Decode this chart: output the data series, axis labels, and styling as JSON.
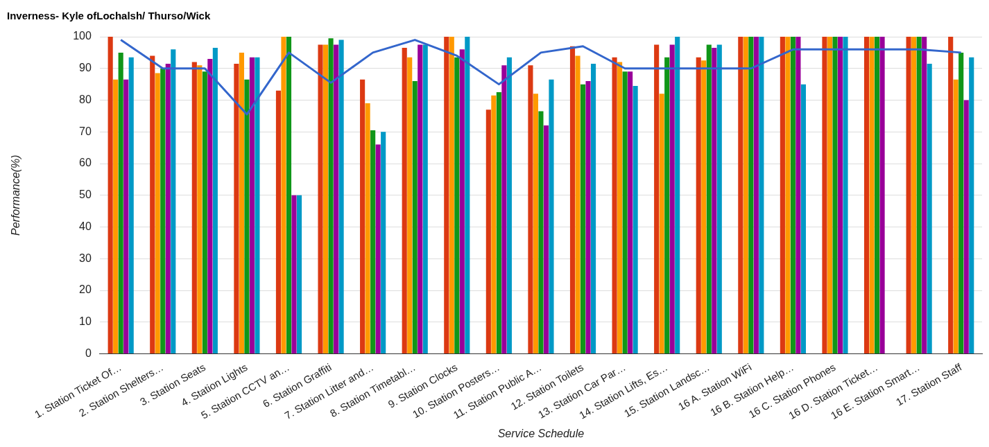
{
  "chart_data": {
    "type": "bar",
    "title": "Inverness- Kyle ofLochalsh/ Thurso/Wick",
    "xlabel": "Service Schedule",
    "ylabel": "Performance(%)",
    "categories": [
      "1. Station Ticket Of…",
      "2. Station Shelters…",
      "3. Station Seats",
      "4. Station Lights",
      "5. Station CCTV an…",
      "6. Station Graffiti",
      "7. Station Litter and…",
      "8. Station Timetabl…",
      "9. Station Clocks",
      "10. Station Posters…",
      "11. Station Public A…",
      "12. Station Toilets",
      "13. Station Car Par…",
      "14. Station Lifts, Es…",
      "15. Station Landsc…",
      "16 A. Station WiFi",
      "16 B. Station Help…",
      "16 C. Station Phones",
      "16 D. Station Ticket…",
      "16 E. Station Smart…",
      "17. Station Staff"
    ],
    "series": [
      {
        "color": "#dc3912",
        "values": [
          100,
          94,
          92,
          91.5,
          83,
          97.5,
          86.5,
          96.5,
          100,
          77,
          91,
          97,
          93.5,
          97.5,
          93.5,
          100,
          100,
          100,
          100,
          100,
          100
        ]
      },
      {
        "color": "#ff9900",
        "values": [
          86.5,
          88.5,
          91,
          95,
          100,
          97.5,
          79,
          93.5,
          100,
          81.5,
          82,
          94,
          92,
          82,
          92.5,
          100,
          100,
          100,
          100,
          100,
          86.5
        ]
      },
      {
        "color": "#109618",
        "values": [
          95,
          90,
          89,
          86.5,
          100,
          99.5,
          70.5,
          86,
          93.5,
          82.5,
          76.5,
          85,
          89,
          93.5,
          97.5,
          100,
          100,
          100,
          100,
          100,
          95
        ]
      },
      {
        "color": "#990099",
        "values": [
          86.5,
          91.5,
          93,
          93.5,
          50,
          97.5,
          66,
          97.5,
          96,
          91,
          72,
          86,
          89,
          97.5,
          96.5,
          100,
          100,
          100,
          100,
          100,
          80
        ]
      },
      {
        "color": "#0099c6",
        "values": [
          93.5,
          96,
          96.5,
          93.5,
          50,
          99,
          70,
          97.5,
          100,
          93.5,
          86.5,
          91.5,
          84.5,
          100,
          97.5,
          100,
          85,
          100,
          null,
          91.5,
          93.5
        ]
      },
      {
        "type": "line",
        "color": "#3366cc",
        "values": [
          99,
          90,
          90,
          75.5,
          95,
          85.5,
          95,
          99,
          94,
          85,
          95,
          97,
          90,
          90,
          90,
          90,
          96,
          96,
          96,
          96,
          95
        ]
      }
    ],
    "ylim": [
      0,
      100
    ],
    "yticks": [
      0,
      10,
      20,
      30,
      40,
      50,
      60,
      70,
      80,
      90,
      100
    ],
    "grid": "y",
    "legend": false,
    "marker": "none"
  }
}
